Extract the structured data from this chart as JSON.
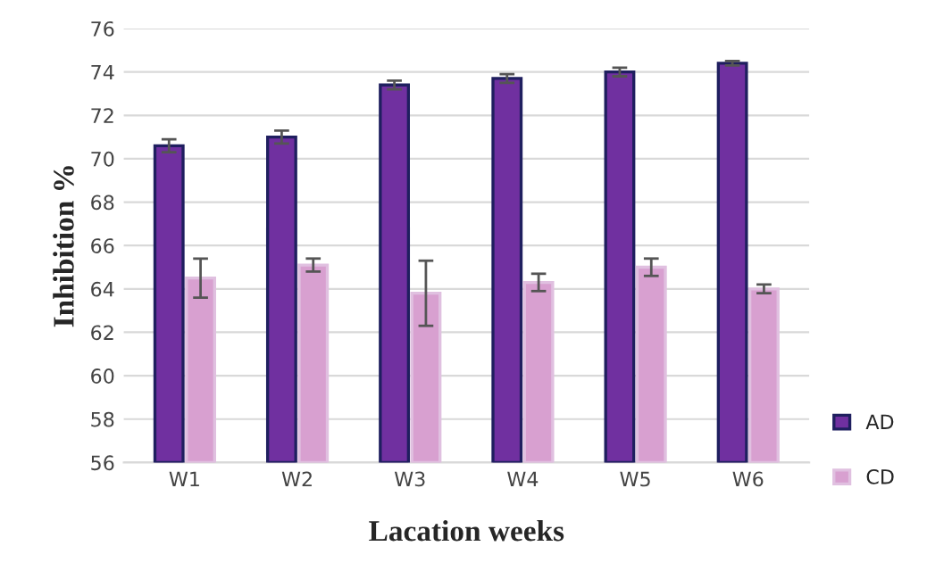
{
  "chart_data": {
    "type": "bar",
    "xlabel": "Lacation weeks",
    "ylabel": "Inhibition %",
    "categories": [
      "W1",
      "W2",
      "W3",
      "W4",
      "W5",
      "W6"
    ],
    "series": [
      {
        "name": "AD",
        "color": "#7030a0",
        "values": [
          70.6,
          71.0,
          73.4,
          73.7,
          74.0,
          74.4
        ],
        "errors": [
          0.3,
          0.3,
          0.2,
          0.2,
          0.2,
          0.1
        ]
      },
      {
        "name": "CD",
        "color": "#d8a0d0",
        "values": [
          64.5,
          65.1,
          63.8,
          64.3,
          65.0,
          64.0
        ],
        "errors": [
          0.9,
          0.3,
          1.5,
          0.4,
          0.4,
          0.2
        ]
      }
    ],
    "ylim": [
      56,
      76
    ],
    "yticks": [
      56,
      58,
      60,
      62,
      64,
      66,
      68,
      70,
      72,
      74,
      76
    ],
    "grid": "y",
    "legend": "right"
  }
}
